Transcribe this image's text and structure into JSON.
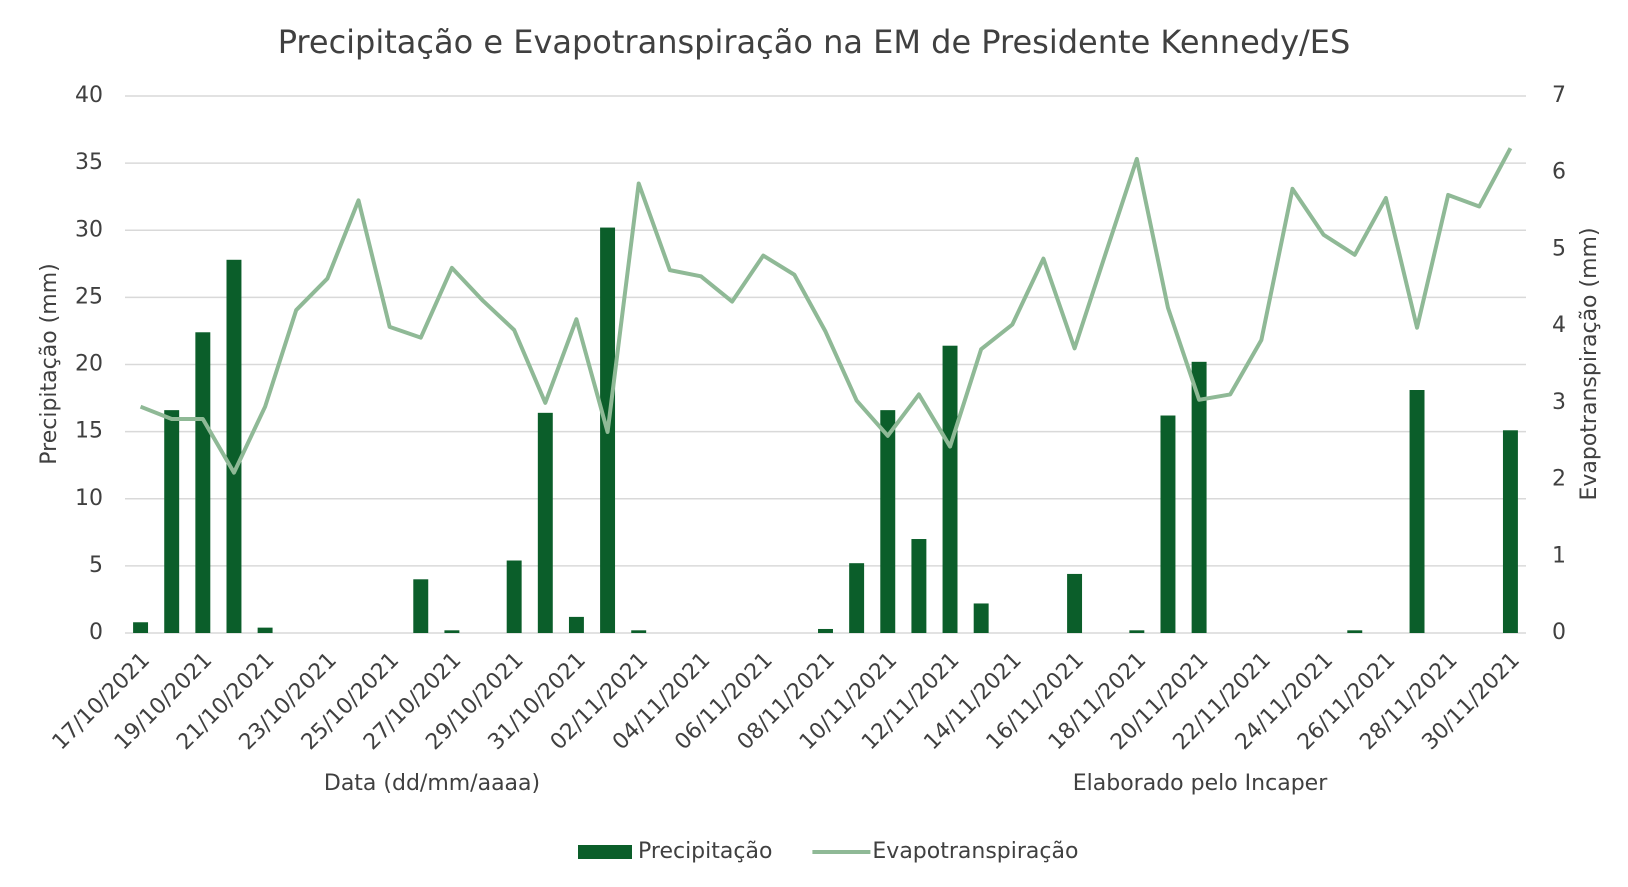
{
  "chart_data": {
    "type": "bar-line",
    "title": "Precipitação e Evapotranspiração na EM de Presidente Kennedy/ES",
    "x_label": "Data (dd/mm/aaaa)",
    "y_label": "Precipitação (mm)",
    "y2_label": "Evapotranspiração (mm)",
    "annotation": "Elaborado pelo Incaper",
    "categories": [
      "17/10/2021",
      null,
      "19/10/2021",
      null,
      "21/10/2021",
      null,
      "23/10/2021",
      null,
      "25/10/2021",
      null,
      "27/10/2021",
      null,
      "29/10/2021",
      null,
      "31/10/2021",
      null,
      "02/11/2021",
      null,
      "04/11/2021",
      null,
      "06/11/2021",
      null,
      "08/11/2021",
      null,
      "10/11/2021",
      null,
      "12/11/2021",
      null,
      "14/11/2021",
      null,
      "16/11/2021",
      null,
      "18/11/2021",
      null,
      "20/11/2021",
      null,
      "22/11/2021",
      null,
      "24/11/2021",
      null,
      "26/11/2021",
      null,
      "28/11/2021",
      null,
      "30/11/2021"
    ],
    "series": [
      {
        "name": "Precipitação",
        "type": "bar",
        "color": "#0b5e2a",
        "values": [
          0.8,
          16.6,
          22.4,
          27.8,
          0.4,
          0,
          0,
          0,
          0,
          4.0,
          0.2,
          0,
          5.4,
          16.4,
          1.2,
          30.2,
          0.2,
          0,
          0,
          0,
          0,
          0,
          0.3,
          5.2,
          16.6,
          7.0,
          21.4,
          2.2,
          0,
          0,
          4.4,
          0,
          0.2,
          16.2,
          20.2,
          0,
          0,
          0,
          0,
          0.2,
          0,
          18.1,
          0,
          0,
          15.1
        ]
      },
      {
        "name": "Evapotranspiração",
        "type": "line",
        "axis": "y2",
        "color": "#8fb996",
        "values": [
          2.95,
          2.79,
          2.79,
          2.09,
          2.95,
          4.21,
          4.62,
          5.64,
          3.99,
          3.85,
          4.76,
          4.33,
          3.95,
          3.0,
          4.09,
          2.62,
          5.86,
          4.73,
          4.65,
          4.32,
          4.92,
          4.67,
          3.93,
          3.03,
          2.57,
          3.11,
          2.43,
          3.7,
          4.02,
          4.88,
          3.71,
          4.95,
          6.18,
          4.24,
          3.04,
          3.11,
          3.82,
          5.79,
          5.19,
          4.93,
          5.67,
          3.98,
          5.71,
          5.56,
          6.32
        ]
      }
    ],
    "ylim": [
      0,
      40
    ],
    "yticks": [
      0,
      5,
      10,
      15,
      20,
      25,
      30,
      35,
      40
    ],
    "y2lim": [
      0,
      7
    ],
    "y2ticks": [
      0,
      1,
      2,
      3,
      4,
      5,
      6,
      7
    ],
    "grid": true,
    "legend": "bottom"
  }
}
